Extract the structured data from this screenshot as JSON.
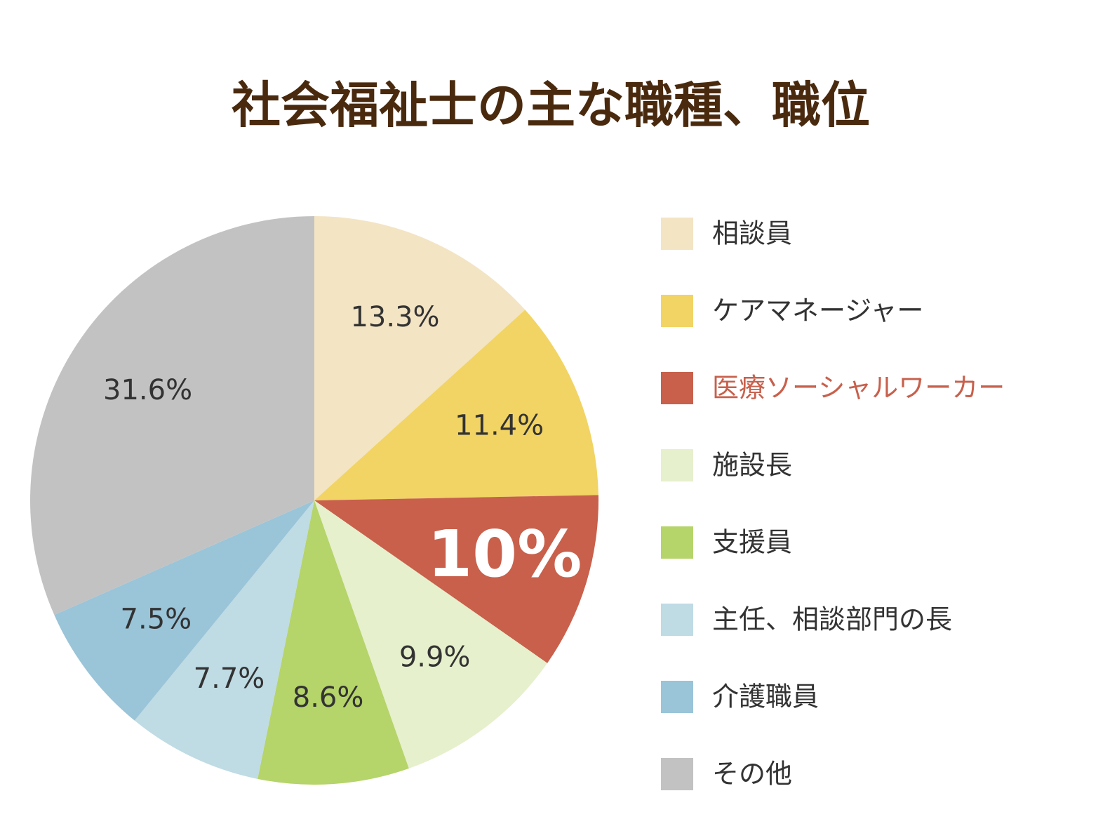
{
  "chart_data": {
    "type": "pie",
    "title": "社会福祉士の主な職種、職位",
    "categories": [
      "相談員",
      "ケアマネージャー",
      "医療ソーシャルワーカー",
      "施設長",
      "支援員",
      "主任、相談部門の長",
      "介護職員",
      "その他"
    ],
    "values": [
      13.3,
      11.4,
      10,
      9.9,
      8.6,
      7.7,
      7.5,
      31.6
    ],
    "value_labels": [
      "13.3%",
      "11.4%",
      "10%",
      "9.9%",
      "8.6%",
      "7.7%",
      "7.5%",
      "31.6%"
    ],
    "colors": [
      "#f3e4c4",
      "#f1d464",
      "#c8604c",
      "#e6f0cc",
      "#b5d46a",
      "#bfdbe4",
      "#9ac4d8",
      "#c2c2c2"
    ],
    "highlight": 2,
    "legend": "right"
  }
}
